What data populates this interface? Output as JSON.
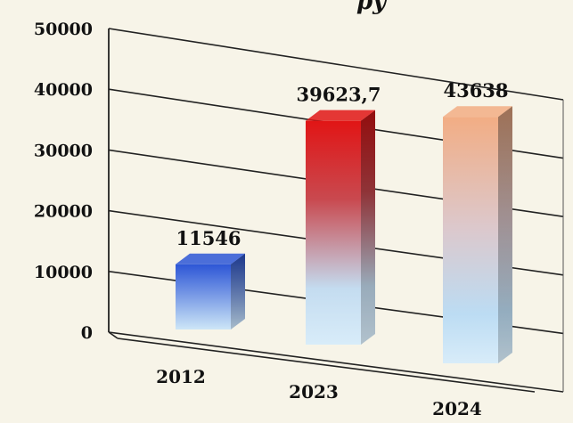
{
  "title_fragment": "ру",
  "chart_data": {
    "type": "bar",
    "style": "3d",
    "categories": [
      "2012",
      "2023",
      "2024"
    ],
    "values": [
      11546,
      39623.7,
      43638
    ],
    "data_labels": [
      "11546",
      "39623,7",
      "43638"
    ],
    "ylim": [
      0,
      50000
    ],
    "yticks": [
      "0",
      "10000",
      "20000",
      "30000",
      "40000",
      "50000"
    ],
    "grid": true,
    "legend": "none",
    "colors": {
      "bar_2012_top": "#2d56d6",
      "bar_2023_top": "#e11515",
      "bar_2024_top": "#f2ad84",
      "bar_bottom": "#cde6f7",
      "background": "#f7f4e8"
    }
  }
}
